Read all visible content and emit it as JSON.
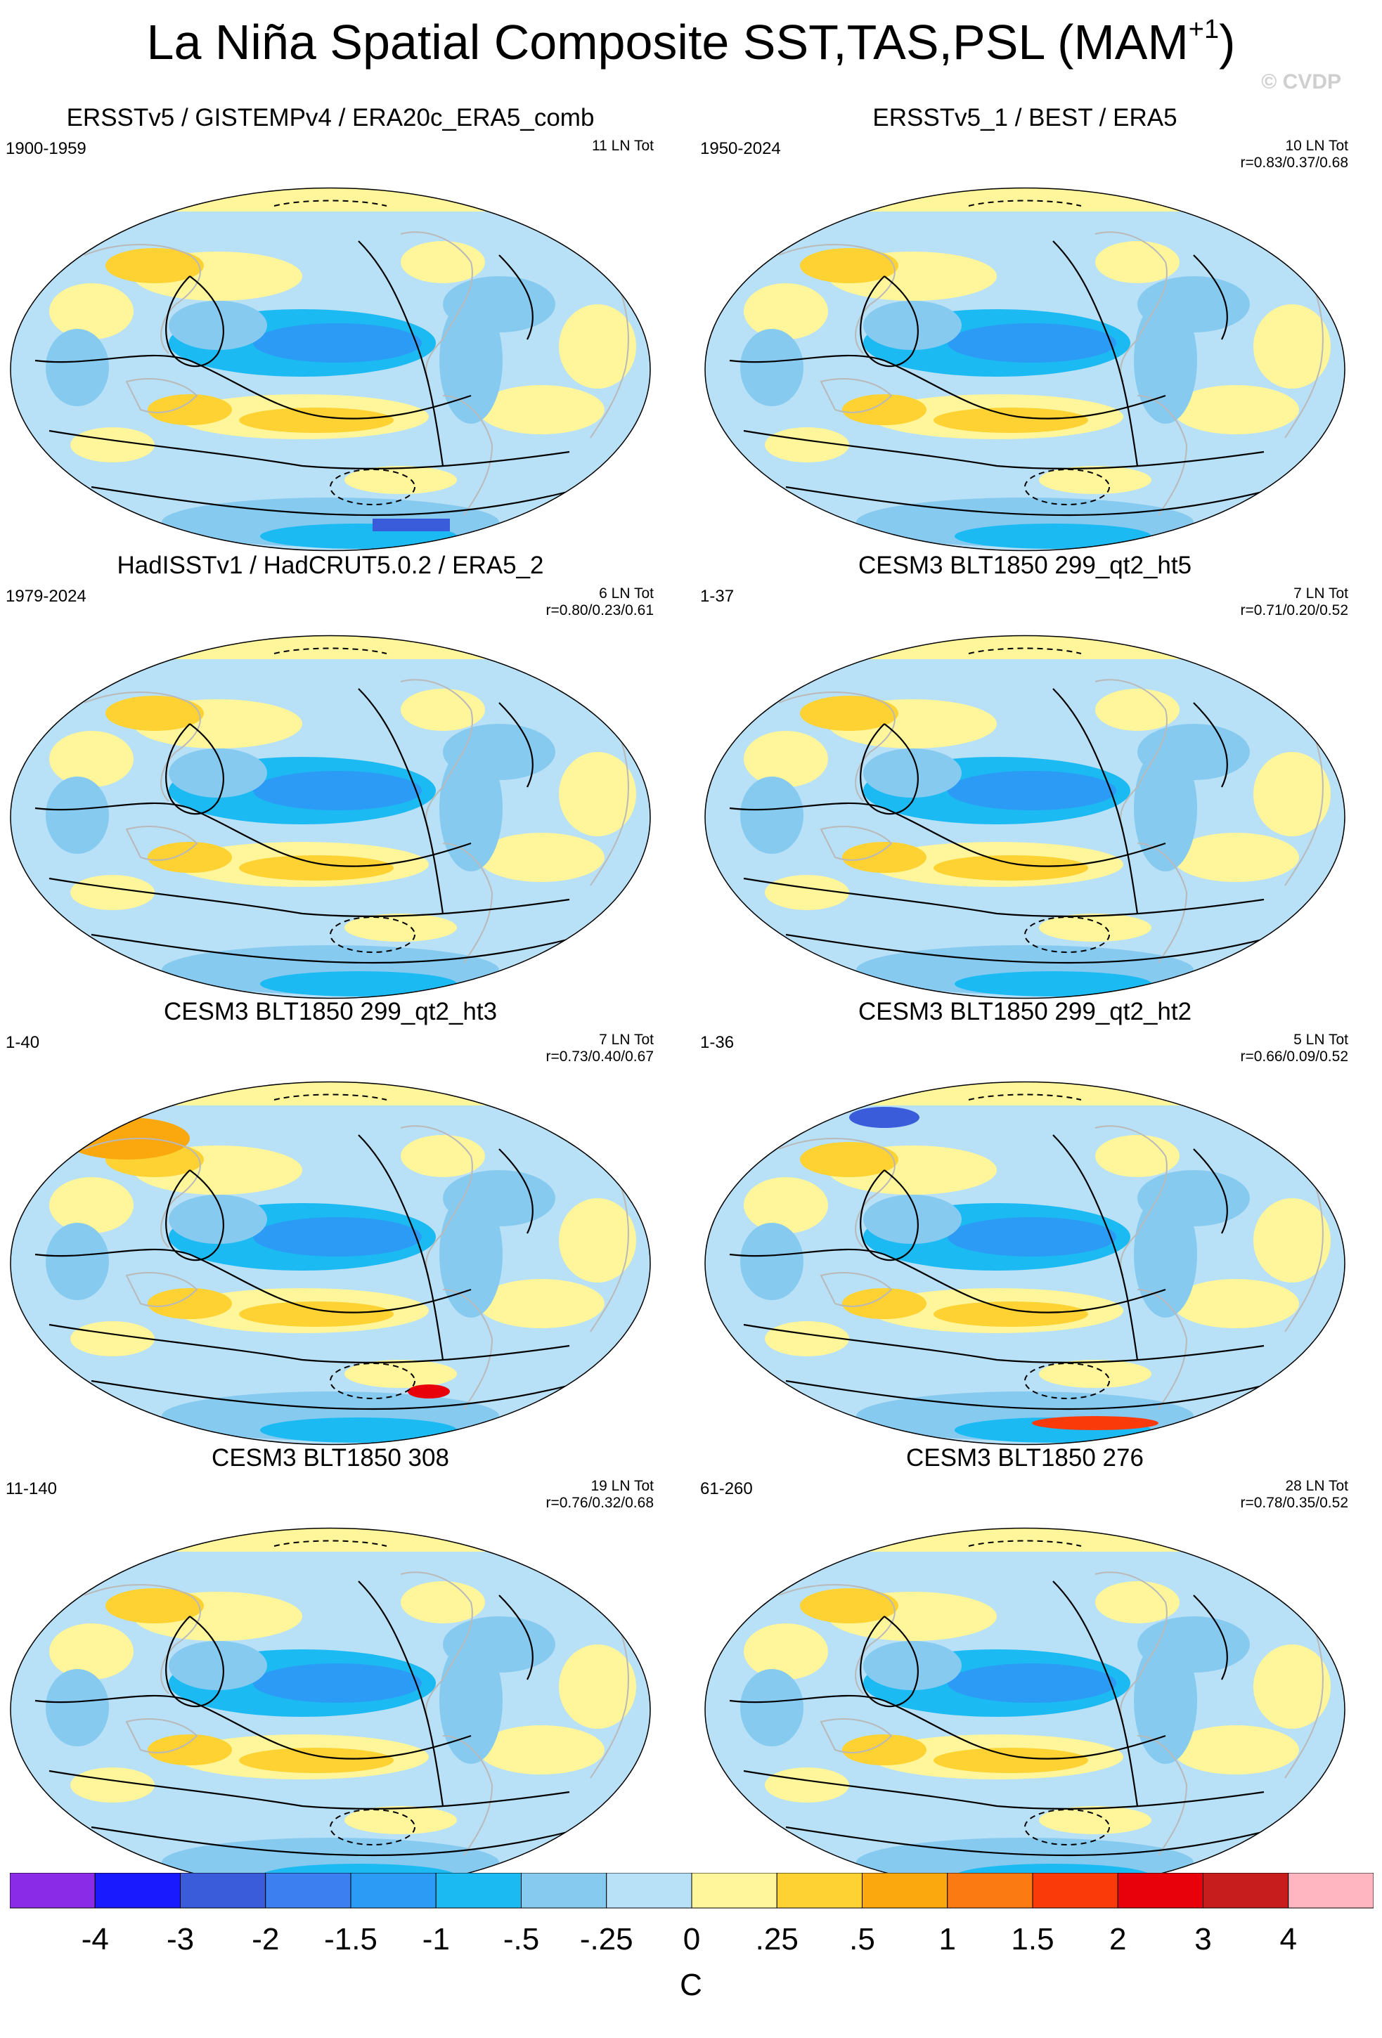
{
  "figure": {
    "title": "La Niña Spatial Composite SST,TAS,PSL (MAM",
    "title_superscript": "+1",
    "title_close": ")",
    "watermark": "© CVDP"
  },
  "palette": {
    "land_outline": "#b9b9b9",
    "contour": "#000000"
  },
  "chart_data": {
    "type": "heatmap",
    "variable": "SST, TAS, PSL composite anomaly",
    "panels": [
      {
        "id": "p1",
        "title": "ERSSTv5 / GISTEMPv4 / ERA20c_ERA5_comb",
        "years": "1900-1959",
        "events": "11 LN Tot",
        "corr": ""
      },
      {
        "id": "p2",
        "title": "ERSSTv5_1 / BEST / ERA5",
        "years": "1950-2024",
        "events": "10 LN Tot",
        "corr": "r=0.83/0.37/0.68"
      },
      {
        "id": "p3",
        "title": "HadISSTv1 / HadCRUT5.0.2 / ERA5_2",
        "years": "1979-2024",
        "events": "6 LN Tot",
        "corr": "r=0.80/0.23/0.61"
      },
      {
        "id": "p4",
        "title": "CESM3 BLT1850 299_qt2_ht5",
        "years": "1-37",
        "events": "7 LN Tot",
        "corr": "r=0.71/0.20/0.52"
      },
      {
        "id": "p5",
        "title": "CESM3 BLT1850 299_qt2_ht3",
        "years": "1-40",
        "events": "7 LN Tot",
        "corr": "r=0.73/0.40/0.67"
      },
      {
        "id": "p6",
        "title": "CESM3 BLT1850 299_qt2_ht2",
        "years": "1-36",
        "events": "5 LN Tot",
        "corr": "r=0.66/0.09/0.52"
      },
      {
        "id": "p7",
        "title": "CESM3 BLT1850 308",
        "years": "11-140",
        "events": "19 LN Tot",
        "corr": "r=0.76/0.32/0.68"
      },
      {
        "id": "p8",
        "title": "CESM3 BLT1850 276",
        "years": "61-260",
        "events": "28 LN Tot",
        "corr": "r=0.78/0.35/0.52"
      }
    ],
    "colorbar": {
      "unit": "C",
      "levels": [
        "-4",
        "-3",
        "-2",
        "-1.5",
        "-1",
        "-.5",
        "-.25",
        "0",
        ".25",
        ".5",
        "1",
        "1.5",
        "2",
        "3",
        "4"
      ],
      "colors": [
        "#8a2be8",
        "#1a1aff",
        "#3a5cdb",
        "#3c7ff0",
        "#2b9bf5",
        "#1cbaf2",
        "#86caf0",
        "#b8e0f6",
        "#fff59a",
        "#fdd232",
        "#fba70e",
        "#fb7a12",
        "#fb3a0a",
        "#e8000b",
        "#c81d1d",
        "#ffb6c1"
      ]
    }
  }
}
